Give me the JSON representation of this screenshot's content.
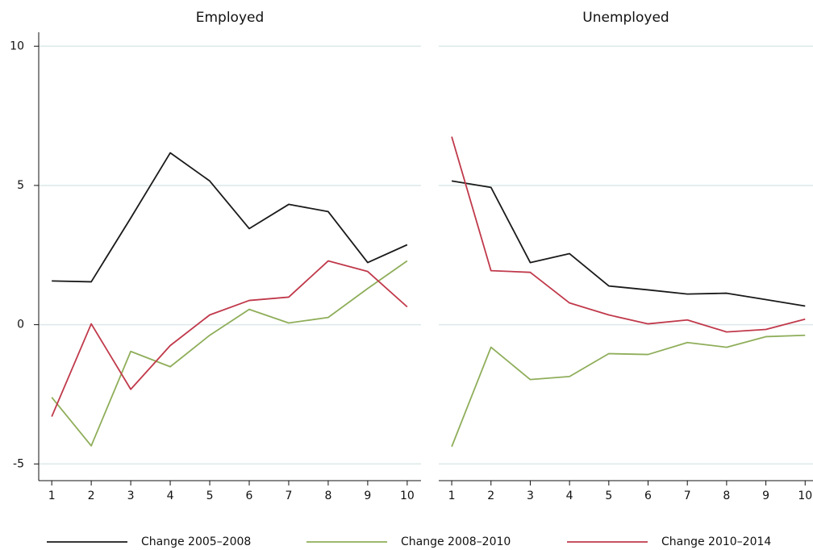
{
  "chart_data": [
    {
      "type": "line",
      "title": "Employed",
      "x": [
        1,
        2,
        3,
        4,
        5,
        6,
        7,
        8,
        9,
        10
      ],
      "xlim": [
        0.67,
        10.35
      ],
      "xticks": [
        1,
        2,
        3,
        4,
        5,
        6,
        7,
        8,
        9,
        10
      ],
      "ylim": [
        -5.6,
        10.5
      ],
      "yticks": [
        -5,
        0,
        5,
        10
      ],
      "grid": true,
      "series": [
        {
          "name": "Change 2005–2008",
          "color": "#1a1a1a",
          "values": [
            1.57,
            1.54,
            3.83,
            6.17,
            5.16,
            3.45,
            4.32,
            4.06,
            2.23,
            2.87
          ]
        },
        {
          "name": "Change 2008–2010",
          "color": "#8fae5a",
          "values": [
            -2.61,
            -4.35,
            -0.96,
            -1.51,
            -0.38,
            0.55,
            0.06,
            0.26,
            1.3,
            2.29
          ]
        },
        {
          "name": "Change 2010–2014",
          "color": "#c0394b",
          "values": [
            -3.3,
            0.03,
            -2.32,
            -0.75,
            0.35,
            0.87,
            0.99,
            2.29,
            1.91,
            0.64
          ]
        }
      ]
    },
    {
      "type": "line",
      "title": "Unemployed",
      "x": [
        1,
        2,
        3,
        4,
        5,
        6,
        7,
        8,
        9,
        10
      ],
      "xlim": [
        0.67,
        10.2
      ],
      "xticks": [
        1,
        2,
        3,
        4,
        5,
        6,
        7,
        8,
        9,
        10
      ],
      "ylim": [
        -5.6,
        10.5
      ],
      "yticks": [
        -5,
        0,
        5,
        10
      ],
      "grid": true,
      "series": [
        {
          "color": "#1a1a1a",
          "values": [
            5.16,
            4.93,
            2.23,
            2.55,
            1.39,
            1.25,
            1.1,
            1.13,
            0.9,
            0.67
          ]
        },
        {
          "color": "#8fae5a",
          "values": [
            -4.38,
            -0.81,
            -1.97,
            -1.86,
            -1.04,
            -1.07,
            -0.64,
            -0.81,
            -0.43,
            -0.38
          ]
        },
        {
          "color": "#c0394b",
          "values": [
            6.75,
            1.94,
            1.88,
            0.78,
            0.35,
            0.03,
            0.17,
            -0.26,
            -0.17,
            0.2
          ]
        }
      ]
    }
  ]
}
